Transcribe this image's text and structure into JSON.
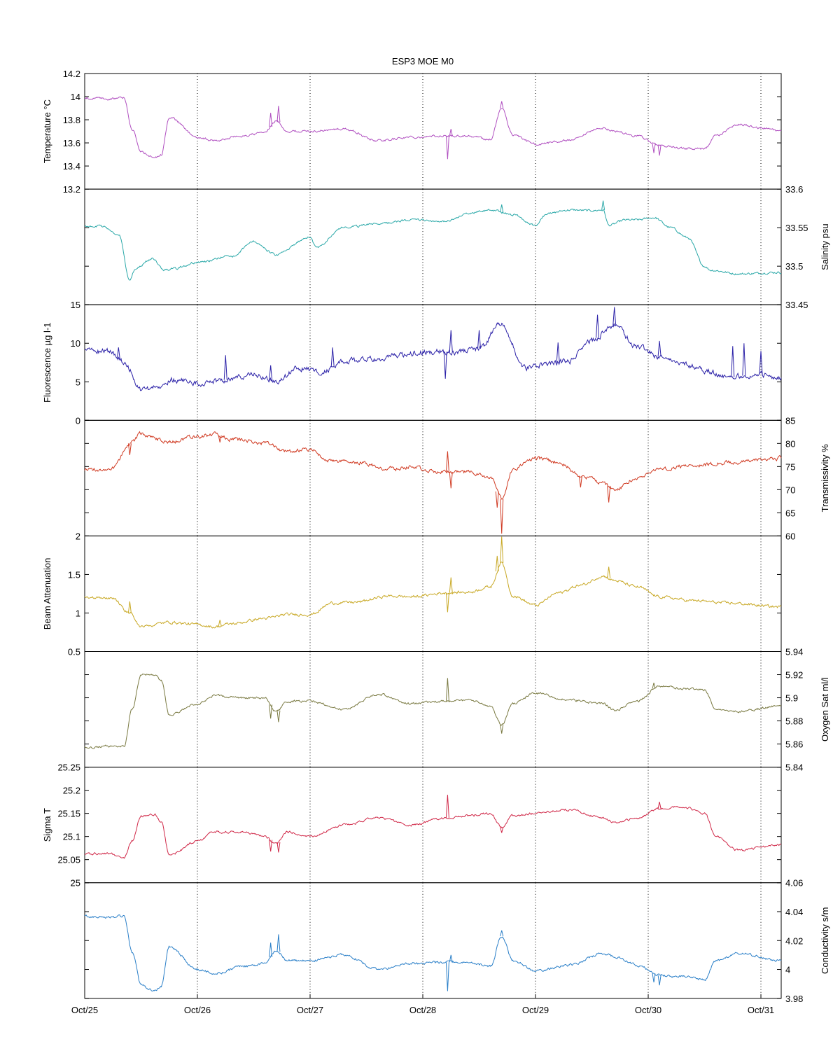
{
  "chart_data": {
    "title": "ESP3 MOE   M0",
    "type": "line",
    "x_ticks": [
      "Oct/25",
      "Oct/26",
      "Oct/27",
      "Oct/28",
      "Oct/29",
      "Oct/30",
      "Oct/31"
    ],
    "x_range_days": [
      25,
      31.18
    ],
    "grid": "dotted vertical lines at day ticks",
    "panels": [
      {
        "name": "Temperature",
        "ylabel": "Temperature °C",
        "axis_side": "left",
        "ylim": [
          13.2,
          14.2
        ],
        "ticks": [
          13.2,
          13.4,
          13.6,
          13.8,
          14,
          14.2
        ],
        "tick_labels": [
          "13.2",
          "13.4",
          "13.6",
          "13.8",
          "14",
          "14.2"
        ],
        "color": "#b04fc0",
        "noise": 0.008,
        "x": [
          25.0,
          25.2,
          25.35,
          25.42,
          25.5,
          25.62,
          25.68,
          25.75,
          26.0,
          26.15,
          26.4,
          26.6,
          26.7,
          26.8,
          27.0,
          27.3,
          27.6,
          27.9,
          28.2,
          28.4,
          28.6,
          28.7,
          28.8,
          29.0,
          29.3,
          29.6,
          29.7,
          29.9,
          30.1,
          30.3,
          30.5,
          30.6,
          30.8,
          31.0,
          31.18
        ],
        "y": [
          13.99,
          13.98,
          13.99,
          13.72,
          13.52,
          13.47,
          13.5,
          13.82,
          13.65,
          13.62,
          13.66,
          13.69,
          13.79,
          13.7,
          13.7,
          13.72,
          13.62,
          13.65,
          13.66,
          13.66,
          13.63,
          13.9,
          13.67,
          13.59,
          13.62,
          13.73,
          13.7,
          13.66,
          13.58,
          13.55,
          13.55,
          13.66,
          13.76,
          13.73,
          13.7
        ],
        "spikes": [
          [
            26.65,
            0.12
          ],
          [
            26.72,
            0.14
          ],
          [
            28.22,
            -0.2
          ],
          [
            28.25,
            0.06
          ],
          [
            28.7,
            0.06
          ],
          [
            30.05,
            -0.08
          ],
          [
            30.1,
            -0.09
          ]
        ]
      },
      {
        "name": "Salinity",
        "ylabel": "Salinity psu",
        "axis_side": "right",
        "ylim": [
          33.45,
          33.6
        ],
        "ticks": [
          33.45,
          33.5,
          33.55,
          33.6
        ],
        "tick_labels": [
          "33.45",
          "33.5",
          "33.55",
          "33.6"
        ],
        "color": "#2aa8a8",
        "noise": 0.0012,
        "x": [
          25.0,
          25.15,
          25.3,
          25.4,
          25.45,
          25.6,
          25.7,
          25.8,
          26.0,
          26.3,
          26.5,
          26.7,
          27.0,
          27.05,
          27.3,
          27.6,
          27.9,
          28.2,
          28.4,
          28.6,
          28.8,
          29.0,
          29.1,
          29.3,
          29.5,
          29.6,
          29.65,
          29.8,
          29.9,
          30.05,
          30.2,
          30.35,
          30.5,
          30.55,
          30.8,
          31.18
        ],
        "y": [
          33.552,
          33.552,
          33.542,
          33.482,
          33.497,
          33.51,
          33.495,
          33.497,
          33.505,
          33.513,
          33.532,
          33.515,
          33.538,
          33.525,
          33.55,
          33.555,
          33.56,
          33.558,
          33.568,
          33.573,
          33.567,
          33.553,
          33.568,
          33.573,
          33.572,
          33.573,
          33.553,
          33.56,
          33.56,
          33.563,
          33.55,
          33.537,
          33.5,
          33.495,
          33.49,
          33.492
        ],
        "spikes": [
          [
            29.6,
            0.012
          ],
          [
            28.7,
            0.01
          ]
        ]
      },
      {
        "name": "Fluorescence",
        "ylabel": "Fluorescence µg l-1",
        "axis_side": "left",
        "ylim": [
          0,
          15
        ],
        "ticks": [
          0,
          5,
          10,
          15
        ],
        "tick_labels": [
          "0",
          "5",
          "10",
          "15"
        ],
        "color": "#2c22a8",
        "noise": 0.3,
        "x": [
          25.0,
          25.2,
          25.35,
          25.5,
          25.6,
          25.8,
          26.0,
          26.2,
          26.5,
          26.7,
          26.9,
          27.1,
          27.3,
          27.6,
          27.8,
          28.0,
          28.3,
          28.5,
          28.7,
          28.9,
          29.1,
          29.3,
          29.5,
          29.7,
          29.9,
          30.1,
          30.3,
          30.5,
          30.7,
          31.0,
          31.18
        ],
        "y": [
          8.9,
          9.0,
          7.6,
          4.0,
          4.2,
          5.3,
          4.8,
          5.2,
          5.9,
          5.0,
          6.8,
          6.3,
          7.6,
          8.0,
          8.4,
          8.9,
          8.9,
          9.3,
          12.6,
          6.8,
          7.3,
          7.7,
          10.4,
          12.3,
          9.6,
          8.3,
          7.4,
          6.4,
          5.6,
          6.0,
          5.5
        ],
        "spikes": [
          [
            25.3,
            1.5
          ],
          [
            26.25,
            3.2
          ],
          [
            26.65,
            2.0
          ],
          [
            27.2,
            2.5
          ],
          [
            28.2,
            -3.5
          ],
          [
            28.25,
            2.8
          ],
          [
            28.5,
            2.4
          ],
          [
            29.2,
            2.6
          ],
          [
            29.55,
            3.0
          ],
          [
            29.7,
            2.4
          ],
          [
            30.1,
            2.0
          ],
          [
            30.75,
            4.0
          ],
          [
            30.85,
            4.2
          ],
          [
            31.0,
            3.0
          ]
        ]
      },
      {
        "name": "Transmissivity",
        "ylabel": "Transmissivity %",
        "axis_side": "right",
        "ylim": [
          60,
          85
        ],
        "ticks": [
          60,
          65,
          70,
          75,
          80,
          85
        ],
        "tick_labels": [
          "60",
          "65",
          "70",
          "75",
          "80",
          "85"
        ],
        "color": "#d03a22",
        "noise": 0.35,
        "x": [
          25.0,
          25.25,
          25.4,
          25.5,
          25.75,
          26.0,
          26.15,
          26.3,
          26.6,
          26.8,
          27.0,
          27.2,
          27.4,
          27.7,
          27.9,
          28.2,
          28.4,
          28.6,
          28.7,
          28.8,
          29.0,
          29.2,
          29.4,
          29.6,
          29.7,
          29.9,
          30.1,
          30.4,
          30.7,
          31.18
        ],
        "y": [
          74.3,
          74.5,
          80.0,
          82.0,
          80.3,
          81.5,
          82.0,
          81.0,
          80.0,
          78.2,
          78.6,
          76.0,
          76.0,
          74.5,
          74.8,
          73.8,
          73.8,
          72.6,
          68.0,
          74.5,
          76.8,
          76.0,
          73.0,
          71.5,
          70.0,
          72.5,
          74.5,
          75.3,
          75.8,
          76.8
        ],
        "spikes": [
          [
            25.4,
            -2.5
          ],
          [
            26.2,
            -1.5
          ],
          [
            28.22,
            4.5
          ],
          [
            28.25,
            -3.5
          ],
          [
            28.7,
            -7.5
          ],
          [
            28.66,
            -3.5
          ],
          [
            29.65,
            -3.5
          ],
          [
            29.4,
            -2.5
          ]
        ]
      },
      {
        "name": "Beam Attenuation",
        "ylabel": "Beam Attenuation",
        "axis_side": "left",
        "ylim": [
          0.5,
          2
        ],
        "ticks": [
          0.5,
          1,
          1.5,
          2
        ],
        "tick_labels": [
          "0.5",
          "1",
          "1.5",
          "2"
        ],
        "color": "#c8a824",
        "noise": 0.015,
        "x": [
          25.0,
          25.25,
          25.4,
          25.5,
          25.75,
          26.0,
          26.15,
          26.3,
          26.6,
          26.8,
          27.0,
          27.2,
          27.4,
          27.7,
          27.9,
          28.2,
          28.4,
          28.6,
          28.7,
          28.8,
          29.0,
          29.2,
          29.4,
          29.6,
          29.7,
          29.9,
          30.1,
          30.4,
          30.7,
          31.18
        ],
        "y": [
          1.21,
          1.19,
          1.0,
          0.82,
          0.88,
          0.85,
          0.82,
          0.86,
          0.93,
          0.98,
          0.98,
          1.13,
          1.14,
          1.22,
          1.21,
          1.26,
          1.27,
          1.34,
          1.65,
          1.22,
          1.1,
          1.26,
          1.36,
          1.48,
          1.42,
          1.34,
          1.21,
          1.16,
          1.13,
          1.08
        ],
        "spikes": [
          [
            25.4,
            0.15
          ],
          [
            26.2,
            0.08
          ],
          [
            28.22,
            -0.25
          ],
          [
            28.25,
            0.2
          ],
          [
            28.7,
            0.4
          ],
          [
            28.66,
            0.2
          ],
          [
            29.65,
            0.15
          ]
        ]
      },
      {
        "name": "Oxygen Sat",
        "ylabel": "Oxygen Sat ml/l",
        "axis_side": "right",
        "ylim": [
          5.84,
          5.94
        ],
        "ticks": [
          5.84,
          5.86,
          5.88,
          5.9,
          5.92,
          5.94
        ],
        "tick_labels": [
          "5.84",
          "5.86",
          "5.88",
          "5.9",
          "5.92",
          "5.94"
        ],
        "color": "#7a7a42",
        "noise": 0.0008,
        "x": [
          25.0,
          25.2,
          25.35,
          25.42,
          25.5,
          25.62,
          25.68,
          25.75,
          26.0,
          26.15,
          26.4,
          26.6,
          26.7,
          26.8,
          27.0,
          27.3,
          27.6,
          27.9,
          28.2,
          28.4,
          28.6,
          28.7,
          28.8,
          29.0,
          29.3,
          29.6,
          29.7,
          29.9,
          30.1,
          30.3,
          30.5,
          30.6,
          30.8,
          31.18
        ],
        "y": [
          5.857,
          5.858,
          5.858,
          5.89,
          5.92,
          5.92,
          5.915,
          5.885,
          5.895,
          5.902,
          5.9,
          5.9,
          5.888,
          5.897,
          5.897,
          5.89,
          5.903,
          5.895,
          5.897,
          5.898,
          5.893,
          5.877,
          5.895,
          5.904,
          5.898,
          5.895,
          5.889,
          5.897,
          5.91,
          5.908,
          5.907,
          5.89,
          5.888,
          5.893
        ],
        "spikes": [
          [
            26.65,
            -0.012
          ],
          [
            26.72,
            -0.01
          ],
          [
            28.22,
            0.02
          ],
          [
            28.7,
            -0.008
          ],
          [
            30.05,
            0.005
          ]
        ]
      },
      {
        "name": "Sigma T",
        "ylabel": "Sigma T",
        "axis_side": "left",
        "ylim": [
          25,
          25.25
        ],
        "ticks": [
          25,
          25.05,
          25.1,
          25.15,
          25.2,
          25.25
        ],
        "tick_labels": [
          "25",
          "25.05",
          "25.1",
          "25.15",
          "25.2",
          "25.25"
        ],
        "color": "#d02848",
        "noise": 0.002,
        "x": [
          25.0,
          25.2,
          25.35,
          25.42,
          25.5,
          25.62,
          25.68,
          25.75,
          26.0,
          26.15,
          26.4,
          26.6,
          26.7,
          26.8,
          27.0,
          27.3,
          27.6,
          27.9,
          28.2,
          28.4,
          28.6,
          28.7,
          28.8,
          29.0,
          29.3,
          29.6,
          29.7,
          29.9,
          30.1,
          30.3,
          30.5,
          30.6,
          30.8,
          31.18
        ],
        "y": [
          25.062,
          25.063,
          25.055,
          25.09,
          25.145,
          25.148,
          25.13,
          25.06,
          25.09,
          25.11,
          25.11,
          25.1,
          25.085,
          25.11,
          25.1,
          25.125,
          25.14,
          25.125,
          25.14,
          25.145,
          25.15,
          25.12,
          25.145,
          25.15,
          25.158,
          25.14,
          25.13,
          25.14,
          25.16,
          25.165,
          25.15,
          25.1,
          25.07,
          25.082
        ],
        "spikes": [
          [
            26.65,
            -0.025
          ],
          [
            26.72,
            -0.022
          ],
          [
            28.22,
            0.05
          ],
          [
            28.7,
            -0.012
          ],
          [
            30.1,
            0.015
          ]
        ]
      },
      {
        "name": "Conductivity",
        "ylabel": "Conductivity s/m",
        "axis_side": "right",
        "ylim": [
          3.98,
          4.06
        ],
        "ticks": [
          3.98,
          4,
          4.02,
          4.04,
          4.06
        ],
        "tick_labels": [
          "3.98",
          "4",
          "4.02",
          "4.04",
          "4.06"
        ],
        "color": "#2a7fc8",
        "noise": 0.0007,
        "x": [
          25.0,
          25.2,
          25.35,
          25.42,
          25.5,
          25.62,
          25.68,
          25.75,
          26.0,
          26.15,
          26.4,
          26.6,
          26.7,
          26.8,
          27.0,
          27.3,
          27.6,
          27.9,
          28.2,
          28.4,
          28.6,
          28.7,
          28.8,
          29.0,
          29.3,
          29.6,
          29.7,
          29.9,
          30.1,
          30.3,
          30.5,
          30.6,
          30.8,
          31.18
        ],
        "y": [
          4.037,
          4.036,
          4.037,
          4.012,
          3.989,
          3.985,
          3.989,
          4.016,
          4.0,
          3.997,
          4.002,
          4.004,
          4.013,
          4.006,
          4.006,
          4.01,
          4.0,
          4.004,
          4.005,
          4.005,
          4.002,
          4.023,
          4.006,
          3.999,
          4.003,
          4.011,
          4.009,
          4.003,
          3.996,
          3.995,
          3.993,
          4.006,
          4.011,
          4.006
        ],
        "spikes": [
          [
            26.65,
            0.01
          ],
          [
            26.72,
            0.012
          ],
          [
            28.22,
            -0.02
          ],
          [
            28.25,
            0.005
          ],
          [
            28.7,
            0.004
          ],
          [
            30.05,
            -0.006
          ],
          [
            30.1,
            -0.007
          ]
        ]
      }
    ]
  }
}
